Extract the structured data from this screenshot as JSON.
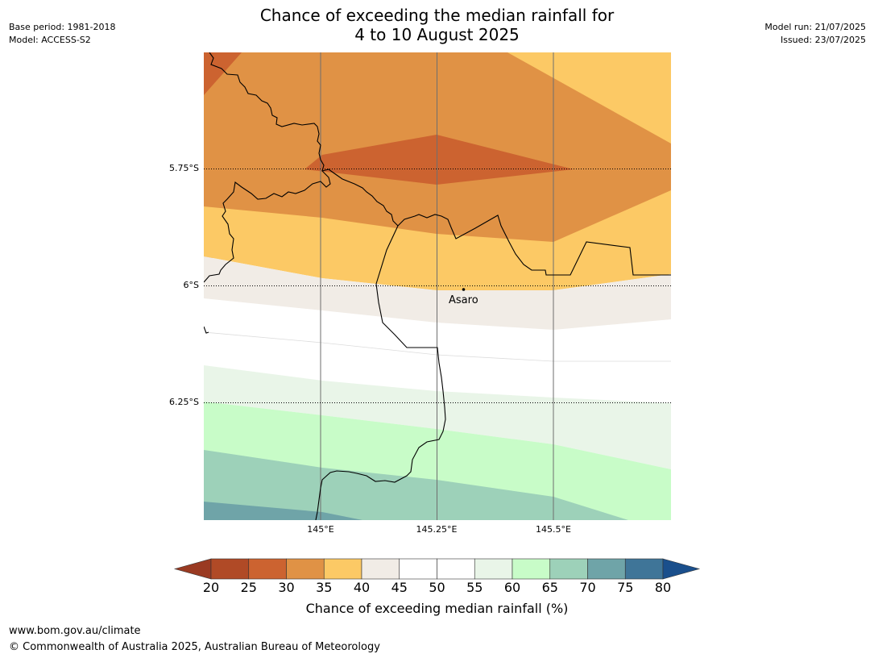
{
  "header": {
    "base_period": "Base period: 1981-2018",
    "model": "Model: ACCESS-S2",
    "model_run": "Model run: 21/07/2025",
    "issued": "Issued: 23/07/2025",
    "title_line1": "Chance of exceeding the median rainfall for",
    "title_line2": "4 to 10 August 2025"
  },
  "map": {
    "lat_labels": [
      "5.75°S",
      "6°S",
      "6.25°S"
    ],
    "lon_labels": [
      "145°E",
      "145.25°E",
      "145.5°E"
    ],
    "place": "Asaro"
  },
  "colorbar": {
    "label": "Chance of exceeding median rainfall (%)",
    "ticks": [
      "20",
      "25",
      "30",
      "35",
      "40",
      "45",
      "50",
      "55",
      "60",
      "65",
      "70",
      "75",
      "80"
    ],
    "colors": [
      "#b04a26",
      "#cc6330",
      "#e09245",
      "#fcc965",
      "#f1ece6",
      "#ffffff",
      "#ffffff",
      "#e9f5e8",
      "#c8fcc8",
      "#9dd1b9",
      "#6fa4a8",
      "#3f7598"
    ],
    "under_color": "#9a3a22",
    "over_color": "#1a4f8c"
  },
  "footer": {
    "url": "www.bom.gov.au/climate",
    "copyright": "© Commonwealth of Australia 2025, Australian Bureau of Meteorology"
  }
}
